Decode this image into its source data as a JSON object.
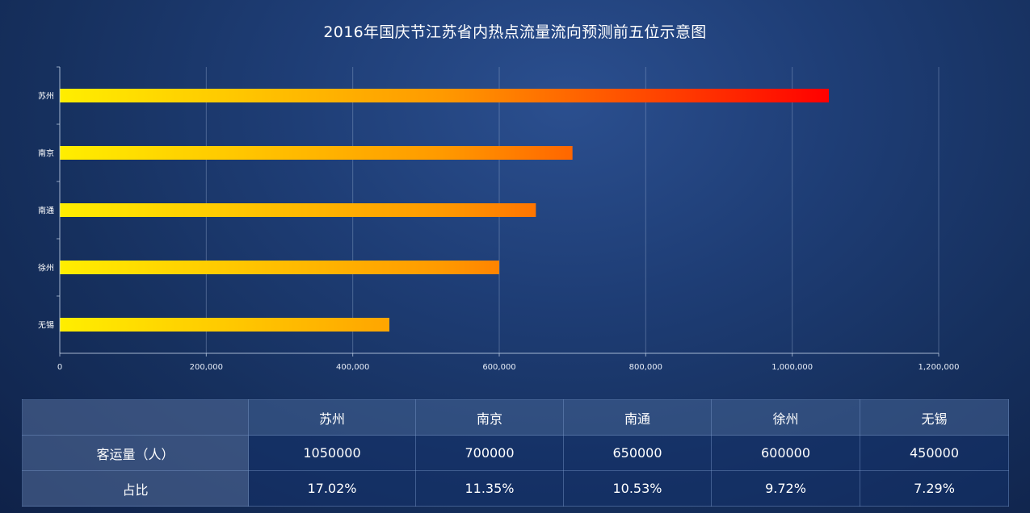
{
  "chart_data": {
    "type": "bar",
    "orientation": "horizontal",
    "title": "2016年国庆节江苏省内热点流量流向预测前五位示意图",
    "categories": [
      "苏州",
      "南京",
      "南通",
      "徐州",
      "无锡"
    ],
    "values": [
      1050000,
      700000,
      650000,
      600000,
      450000
    ],
    "xlim": [
      0,
      1200000
    ],
    "xticks": [
      0,
      200000,
      400000,
      600000,
      800000,
      1000000,
      1200000
    ],
    "xtick_labels": [
      "0",
      "200,000",
      "400,000",
      "600,000",
      "800,000",
      "1,000,000",
      "1,200,000"
    ],
    "grid": "vertical",
    "bar_gradient": [
      "#ffee00",
      "#ff9900",
      "#ff0000"
    ]
  },
  "table": {
    "headers": [
      "苏州",
      "南京",
      "南通",
      "徐州",
      "无锡"
    ],
    "rows": [
      {
        "label": "客运量（人）",
        "values": [
          "1050000",
          "700000",
          "650000",
          "600000",
          "450000"
        ]
      },
      {
        "label": "占比",
        "values": [
          "17.02%",
          "11.35%",
          "10.53%",
          "9.72%",
          "7.29%"
        ]
      }
    ]
  }
}
